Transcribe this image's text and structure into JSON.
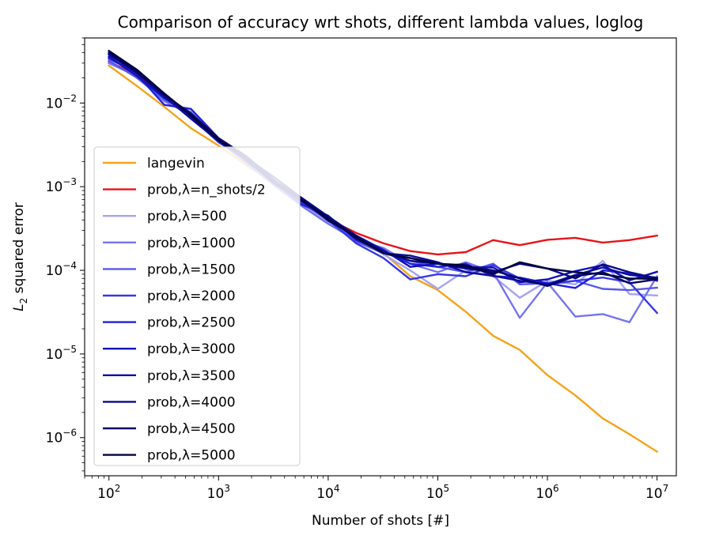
{
  "chart_data": {
    "type": "line",
    "title": "Comparison of accuracy wrt shots, different lambda values, loglog",
    "xlabel": "Number of shots [#]",
    "ylabel_base": "L",
    "ylabel_sub": "2",
    "ylabel_rest": " squared error",
    "xscale": "log",
    "yscale": "log",
    "xlim": [
      60,
      15000000
    ],
    "ylim": [
      3.5e-07,
      0.06
    ],
    "x_ticks": [
      {
        "value": 100,
        "base": "10",
        "exp": "2"
      },
      {
        "value": 1000,
        "base": "10",
        "exp": "3"
      },
      {
        "value": 10000,
        "base": "10",
        "exp": "4"
      },
      {
        "value": 100000,
        "base": "10",
        "exp": "5"
      },
      {
        "value": 1000000,
        "base": "10",
        "exp": "6"
      },
      {
        "value": 10000000,
        "base": "10",
        "exp": "7"
      }
    ],
    "y_ticks": [
      {
        "value": 1e-06,
        "base": "10",
        "exp": "−6"
      },
      {
        "value": 1e-05,
        "base": "10",
        "exp": "−5"
      },
      {
        "value": 0.0001,
        "base": "10",
        "exp": "−4"
      },
      {
        "value": 0.001,
        "base": "10",
        "exp": "−3"
      },
      {
        "value": 0.01,
        "base": "10",
        "exp": "−2"
      }
    ],
    "legend_position": "center-left",
    "grid": false,
    "x": [
      100,
      180,
      320,
      560,
      1000,
      1800,
      3200,
      5600,
      10000,
      18000,
      32000,
      56000,
      100000,
      180000,
      320000,
      560000,
      1000000,
      1800000,
      3200000,
      5600000,
      10000000
    ],
    "series": [
      {
        "name": "langevin",
        "color": "#f5a31a",
        "values": [
          0.028,
          0.016,
          0.009,
          0.005,
          0.0031,
          0.0018,
          0.0011,
          0.00065,
          0.00041,
          0.00026,
          0.00016,
          8.5e-05,
          5.8e-05,
          3.2e-05,
          1.65e-05,
          1.12e-05,
          5.6e-06,
          3.2e-06,
          1.7e-06,
          1.1e-06,
          6.8e-07
        ]
      },
      {
        "name": "prob,λ=n_shots/2",
        "color": "#e8141a",
        "values": [
          0.031,
          0.022,
          0.012,
          0.0072,
          0.0035,
          0.0021,
          0.0012,
          0.00068,
          0.00041,
          0.00028,
          0.00021,
          0.00017,
          0.000155,
          0.000165,
          0.00023,
          0.0002,
          0.000232,
          0.000245,
          0.000215,
          0.00023,
          0.00026
        ]
      },
      {
        "name": "prob,λ=500",
        "color": "#a3a3f5",
        "values": [
          0.033,
          0.024,
          0.0125,
          0.007,
          0.0036,
          0.002,
          0.0011,
          0.00063,
          0.00038,
          0.00024,
          0.000155,
          0.0001,
          6e-05,
          0.0001,
          8.5e-05,
          4.7e-05,
          7.5e-05,
          6.8e-05,
          0.00013,
          5.2e-05,
          5e-05
        ]
      },
      {
        "name": "prob,λ=1000",
        "color": "#7474f0",
        "values": [
          0.03,
          0.021,
          0.0105,
          0.0072,
          0.0035,
          0.0019,
          0.00105,
          0.0006,
          0.00036,
          0.00023,
          0.000185,
          0.00012,
          9.5e-05,
          0.000125,
          9.5e-05,
          2.7e-05,
          7.2e-05,
          2.8e-05,
          3e-05,
          2.4e-05,
          8.5e-05
        ]
      },
      {
        "name": "prob,λ=1500",
        "color": "#5858ea",
        "values": [
          0.032,
          0.02,
          0.011,
          0.0078,
          0.0036,
          0.0021,
          0.00115,
          0.00065,
          0.00043,
          0.00022,
          0.00016,
          0.00013,
          0.00011,
          9.5e-05,
          0.00012,
          6.8e-05,
          7e-05,
          7.5e-05,
          6e-05,
          5.8e-05,
          6.2e-05
        ]
      },
      {
        "name": "prob,λ=2000",
        "color": "#3838e4",
        "values": [
          0.034,
          0.023,
          0.012,
          0.0068,
          0.0034,
          0.0021,
          0.0011,
          0.00066,
          0.0004,
          0.00021,
          0.00014,
          7.8e-05,
          9e-05,
          8.5e-05,
          0.000115,
          8e-05,
          6.8e-05,
          7.5e-05,
          8.2e-05,
          7.2e-05,
          3.1e-05
        ]
      },
      {
        "name": "prob,λ=2500",
        "color": "#1e1edc",
        "values": [
          0.035,
          0.022,
          0.0095,
          0.0085,
          0.0038,
          0.002,
          0.00115,
          0.00062,
          0.00045,
          0.00023,
          0.00017,
          0.00012,
          0.00011,
          0.00012,
          8.5e-05,
          8.2e-05,
          7e-05,
          6.15e-05,
          0.0001,
          9.2e-05,
          7.5e-05
        ]
      },
      {
        "name": "prob,λ=3000",
        "color": "#1212b8",
        "values": [
          0.036,
          0.021,
          0.0115,
          0.0072,
          0.0037,
          0.0022,
          0.0012,
          0.00072,
          0.00039,
          0.00026,
          0.000175,
          0.00011,
          0.00012,
          0.00011,
          0.000108,
          7.2e-05,
          7.8e-05,
          9.8e-05,
          0.000115,
          7.6e-05,
          9.6e-05
        ]
      },
      {
        "name": "prob,λ=3500",
        "color": "#0c0ca0",
        "values": [
          0.038,
          0.023,
          0.012,
          0.0065,
          0.0035,
          0.0021,
          0.0012,
          0.0007,
          0.00042,
          0.00025,
          0.00016,
          0.00015,
          0.000125,
          9.5e-05,
          8.6e-05,
          7.5e-05,
          6.8e-05,
          8.8e-05,
          0.000108,
          8.8e-05,
          8.2e-05
        ]
      },
      {
        "name": "prob,λ=4000",
        "color": "#080888",
        "values": [
          0.039,
          0.024,
          0.013,
          0.0072,
          0.0036,
          0.0022,
          0.0013,
          0.00075,
          0.00044,
          0.00026,
          0.000165,
          0.00013,
          0.00012,
          0.000105,
          9.5e-05,
          0.00012,
          0.000105,
          8e-05,
          0.000118,
          9.5e-05,
          8e-05
        ]
      },
      {
        "name": "prob,λ=4500",
        "color": "#050566",
        "values": [
          0.04,
          0.023,
          0.0125,
          0.0075,
          0.0038,
          0.0023,
          0.0012,
          0.00068,
          0.00043,
          0.00024,
          0.00016,
          0.00014,
          0.00012,
          0.00011,
          0.0001,
          8e-05,
          6.5e-05,
          8.5e-05,
          9.5e-05,
          7e-05,
          7.8e-05
        ]
      },
      {
        "name": "prob,λ=5000",
        "color": "#020240",
        "values": [
          0.042,
          0.025,
          0.013,
          0.007,
          0.0036,
          0.0021,
          0.0011,
          0.00072,
          0.0004,
          0.00025,
          0.00016,
          0.00014,
          0.00012,
          0.000115,
          9e-05,
          0.000125,
          0.000105,
          9.5e-05,
          9e-05,
          8e-05,
          7.9e-05
        ]
      }
    ]
  }
}
